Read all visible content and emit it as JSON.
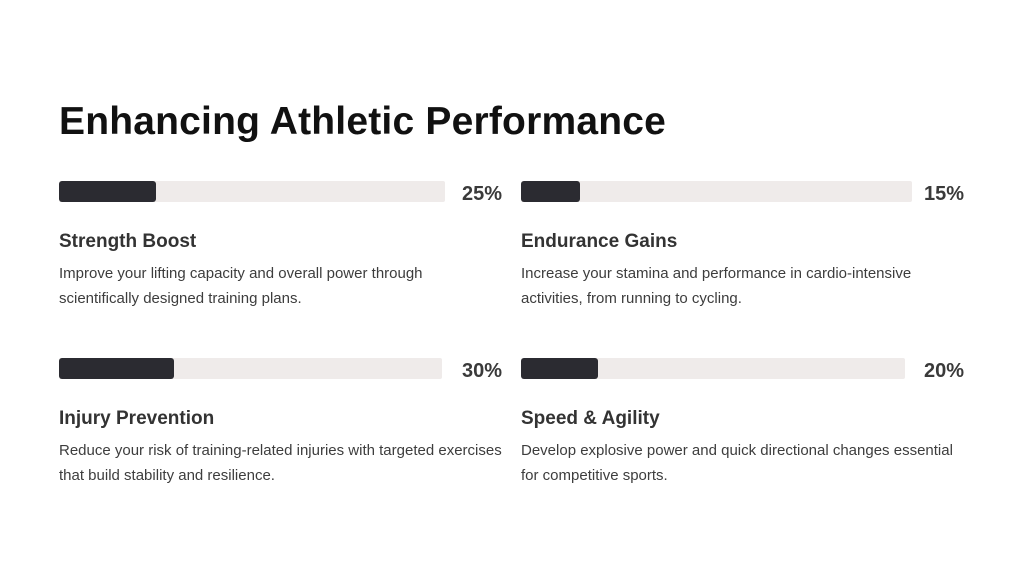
{
  "page": {
    "title": "Enhancing Athletic Performance"
  },
  "cards": [
    {
      "title": "Strength Boost",
      "description": "Improve your lifting capacity and overall power through scientifically designed training plans.",
      "percent_label": "25%",
      "progress": 0.25
    },
    {
      "title": "Endurance Gains",
      "description": "Increase your stamina and performance in cardio-intensive activities, from running to cycling.",
      "percent_label": "15%",
      "progress": 0.15
    },
    {
      "title": "Injury Prevention",
      "description": "Reduce your risk of training-related injuries with targeted exercises that build stability and resilience.",
      "percent_label": "30%",
      "progress": 0.3
    },
    {
      "title": "Speed & Agility",
      "description": "Develop explosive power and quick directional changes essential for competitive sports.",
      "percent_label": "20%",
      "progress": 0.2
    }
  ],
  "colors": {
    "bar_fill": "#2b2b31",
    "bar_track": "#efebea",
    "title_text": "#111111",
    "body_text": "#3d3d3d"
  }
}
